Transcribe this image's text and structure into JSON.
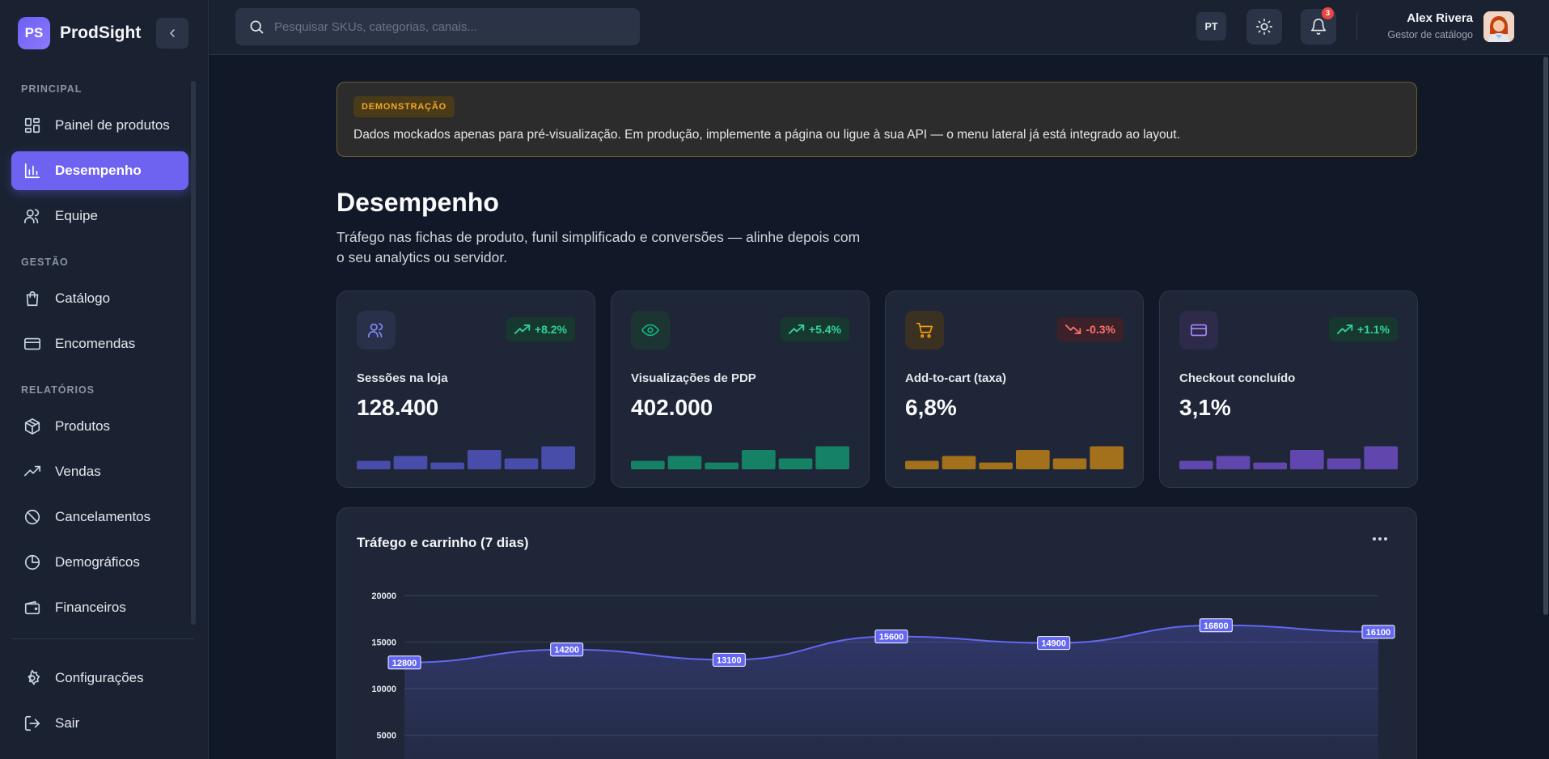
{
  "brand": {
    "logo": "PS",
    "name": "ProdSight"
  },
  "sidebar": {
    "sections": [
      "PRINCIPAL",
      "GESTÃO",
      "RELATÓRIOS"
    ],
    "items": [
      {
        "label": "Painel de produtos",
        "icon": "dashboard-icon"
      },
      {
        "label": "Desempenho",
        "icon": "bar-chart-icon",
        "active": true
      },
      {
        "label": "Equipe",
        "icon": "users-icon"
      },
      {
        "label": "Catálogo",
        "icon": "shopping-bag-icon"
      },
      {
        "label": "Encomendas",
        "icon": "credit-card-icon"
      },
      {
        "label": "Produtos",
        "icon": "package-icon"
      },
      {
        "label": "Vendas",
        "icon": "trending-up-icon"
      },
      {
        "label": "Cancelamentos",
        "icon": "ban-icon"
      },
      {
        "label": "Demográficos",
        "icon": "pie-chart-icon"
      },
      {
        "label": "Financeiros",
        "icon": "wallet-icon"
      },
      {
        "label": "Configurações",
        "icon": "settings-icon"
      },
      {
        "label": "Sair",
        "icon": "logout-icon"
      }
    ]
  },
  "topbar": {
    "search_placeholder": "Pesquisar SKUs, categorias, canais...",
    "lang": "PT",
    "notifications": "3",
    "user_name": "Alex Rivera",
    "user_role": "Gestor de catálogo"
  },
  "banner": {
    "tag": "DEMONSTRAÇÃO",
    "text": "Dados mockados apenas para pré-visualização. Em produção, implemente a página ou ligue à sua API — o menu lateral já está integrado ao layout."
  },
  "page": {
    "title": "Desempenho",
    "subtitle": "Tráfego nas fichas de produto, funil simplificado e conversões — alinhe depois com o seu analytics ou servidor."
  },
  "kpis": [
    {
      "label": "Sessões na loja",
      "value": "128.400",
      "trend": "+8.2%",
      "direction": "up",
      "icon": "users-icon",
      "color": "#6366f1",
      "bars": [
        0.35,
        0.55,
        0.28,
        0.8,
        0.45,
        0.95
      ]
    },
    {
      "label": "Visualizações de PDP",
      "value": "402.000",
      "trend": "+5.4%",
      "direction": "up",
      "icon": "eye-icon",
      "color": "#10b981",
      "bars": [
        0.35,
        0.55,
        0.28,
        0.8,
        0.45,
        0.95
      ]
    },
    {
      "label": "Add-to-cart (taxa)",
      "value": "6,8%",
      "trend": "-0.3%",
      "direction": "down",
      "icon": "cart-icon",
      "color": "#f59e0b",
      "bars": [
        0.35,
        0.55,
        0.28,
        0.8,
        0.45,
        0.95
      ]
    },
    {
      "label": "Checkout concluído",
      "value": "3,1%",
      "trend": "+1.1%",
      "direction": "up",
      "icon": "credit-card-icon",
      "color": "#8b5cf6",
      "bars": [
        0.35,
        0.55,
        0.28,
        0.8,
        0.45,
        0.95
      ]
    }
  ],
  "chart_data": {
    "type": "area",
    "title": "Tráfego e carrinho (7 dias)",
    "y_ticks": [
      "20000",
      "15000",
      "10000",
      "5000"
    ],
    "ylim": [
      0,
      20000
    ],
    "series": [
      {
        "values": [
          12800,
          14200,
          13100,
          15600,
          14900,
          16800,
          16100
        ],
        "color": "#6366f1"
      }
    ],
    "grid": true
  }
}
